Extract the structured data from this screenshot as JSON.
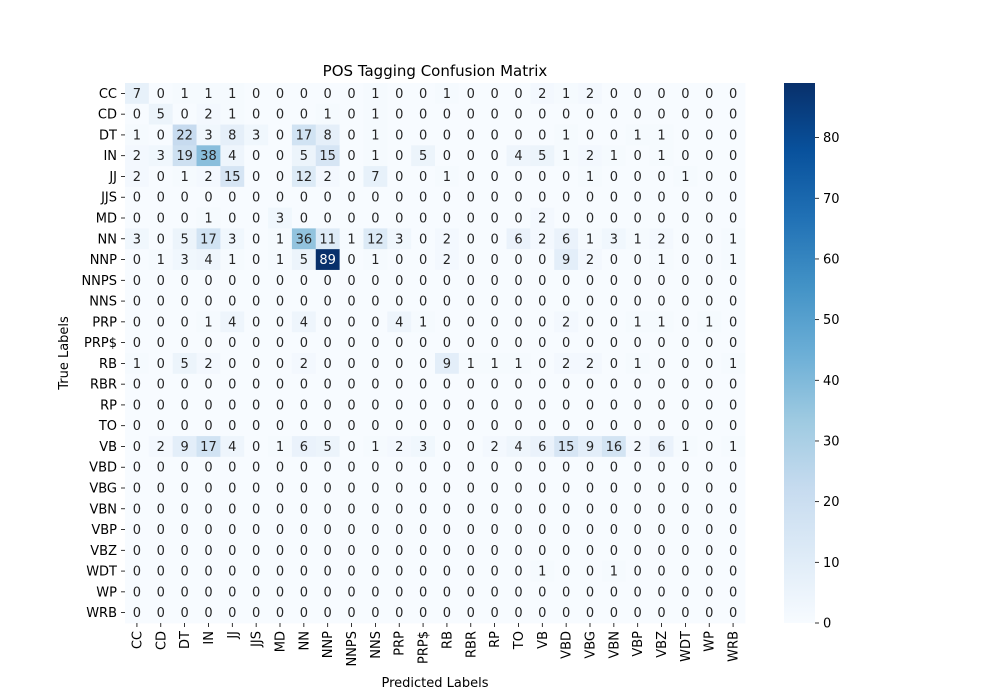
{
  "chart_data": {
    "type": "heatmap",
    "title": "POS Tagging Confusion Matrix",
    "xlabel": "Predicted Labels",
    "ylabel": "True Labels",
    "labels": [
      "CC",
      "CD",
      "DT",
      "IN",
      "JJ",
      "JJS",
      "MD",
      "NN",
      "NNP",
      "NNPS",
      "NNS",
      "PRP",
      "PRP$",
      "RB",
      "RBR",
      "RP",
      "TO",
      "VB",
      "VBD",
      "VBG",
      "VBN",
      "VBP",
      "VBZ",
      "WDT",
      "WP",
      "WRB"
    ],
    "matrix": [
      [
        7,
        0,
        1,
        1,
        1,
        0,
        0,
        0,
        0,
        0,
        1,
        0,
        0,
        1,
        0,
        0,
        0,
        2,
        1,
        2,
        0,
        0,
        0,
        0,
        0,
        0
      ],
      [
        0,
        5,
        0,
        2,
        1,
        0,
        0,
        0,
        1,
        0,
        1,
        0,
        0,
        0,
        0,
        0,
        0,
        0,
        0,
        0,
        0,
        0,
        0,
        0,
        0,
        0
      ],
      [
        1,
        0,
        22,
        3,
        8,
        3,
        0,
        17,
        8,
        0,
        1,
        0,
        0,
        0,
        0,
        0,
        0,
        0,
        1,
        0,
        0,
        1,
        1,
        0,
        0,
        0
      ],
      [
        2,
        3,
        19,
        38,
        4,
        0,
        0,
        5,
        15,
        0,
        1,
        0,
        5,
        0,
        0,
        0,
        4,
        5,
        1,
        2,
        1,
        0,
        1,
        0,
        0,
        0
      ],
      [
        2,
        0,
        1,
        2,
        15,
        0,
        0,
        12,
        2,
        0,
        7,
        0,
        0,
        1,
        0,
        0,
        0,
        0,
        0,
        1,
        0,
        0,
        0,
        1,
        0,
        0
      ],
      [
        0,
        0,
        0,
        0,
        0,
        0,
        0,
        0,
        0,
        0,
        0,
        0,
        0,
        0,
        0,
        0,
        0,
        0,
        0,
        0,
        0,
        0,
        0,
        0,
        0,
        0
      ],
      [
        0,
        0,
        0,
        1,
        0,
        0,
        3,
        0,
        0,
        0,
        0,
        0,
        0,
        0,
        0,
        0,
        0,
        2,
        0,
        0,
        0,
        0,
        0,
        0,
        0,
        0
      ],
      [
        3,
        0,
        5,
        17,
        3,
        0,
        1,
        36,
        11,
        1,
        12,
        3,
        0,
        2,
        0,
        0,
        6,
        2,
        6,
        1,
        3,
        1,
        2,
        0,
        0,
        1
      ],
      [
        0,
        1,
        3,
        4,
        1,
        0,
        1,
        5,
        89,
        0,
        1,
        0,
        0,
        2,
        0,
        0,
        0,
        0,
        9,
        2,
        0,
        0,
        1,
        0,
        0,
        1
      ],
      [
        0,
        0,
        0,
        0,
        0,
        0,
        0,
        0,
        0,
        0,
        0,
        0,
        0,
        0,
        0,
        0,
        0,
        0,
        0,
        0,
        0,
        0,
        0,
        0,
        0,
        0
      ],
      [
        0,
        0,
        0,
        0,
        0,
        0,
        0,
        0,
        0,
        0,
        0,
        0,
        0,
        0,
        0,
        0,
        0,
        0,
        0,
        0,
        0,
        0,
        0,
        0,
        0,
        0
      ],
      [
        0,
        0,
        0,
        1,
        4,
        0,
        0,
        4,
        0,
        0,
        0,
        4,
        1,
        0,
        0,
        0,
        0,
        0,
        2,
        0,
        0,
        1,
        1,
        0,
        1,
        0
      ],
      [
        0,
        0,
        0,
        0,
        0,
        0,
        0,
        0,
        0,
        0,
        0,
        0,
        0,
        0,
        0,
        0,
        0,
        0,
        0,
        0,
        0,
        0,
        0,
        0,
        0,
        0
      ],
      [
        1,
        0,
        5,
        2,
        0,
        0,
        0,
        2,
        0,
        0,
        0,
        0,
        0,
        9,
        1,
        1,
        1,
        0,
        2,
        2,
        0,
        1,
        0,
        0,
        0,
        1
      ],
      [
        0,
        0,
        0,
        0,
        0,
        0,
        0,
        0,
        0,
        0,
        0,
        0,
        0,
        0,
        0,
        0,
        0,
        0,
        0,
        0,
        0,
        0,
        0,
        0,
        0,
        0
      ],
      [
        0,
        0,
        0,
        0,
        0,
        0,
        0,
        0,
        0,
        0,
        0,
        0,
        0,
        0,
        0,
        0,
        0,
        0,
        0,
        0,
        0,
        0,
        0,
        0,
        0,
        0
      ],
      [
        0,
        0,
        0,
        0,
        0,
        0,
        0,
        0,
        0,
        0,
        0,
        0,
        0,
        0,
        0,
        0,
        0,
        0,
        0,
        0,
        0,
        0,
        0,
        0,
        0,
        0
      ],
      [
        0,
        2,
        9,
        17,
        4,
        0,
        1,
        6,
        5,
        0,
        1,
        2,
        3,
        0,
        0,
        2,
        4,
        6,
        15,
        9,
        16,
        2,
        6,
        1,
        0,
        1
      ],
      [
        0,
        0,
        0,
        0,
        0,
        0,
        0,
        0,
        0,
        0,
        0,
        0,
        0,
        0,
        0,
        0,
        0,
        0,
        0,
        0,
        0,
        0,
        0,
        0,
        0,
        0
      ],
      [
        0,
        0,
        0,
        0,
        0,
        0,
        0,
        0,
        0,
        0,
        0,
        0,
        0,
        0,
        0,
        0,
        0,
        0,
        0,
        0,
        0,
        0,
        0,
        0,
        0,
        0
      ],
      [
        0,
        0,
        0,
        0,
        0,
        0,
        0,
        0,
        0,
        0,
        0,
        0,
        0,
        0,
        0,
        0,
        0,
        0,
        0,
        0,
        0,
        0,
        0,
        0,
        0,
        0
      ],
      [
        0,
        0,
        0,
        0,
        0,
        0,
        0,
        0,
        0,
        0,
        0,
        0,
        0,
        0,
        0,
        0,
        0,
        0,
        0,
        0,
        0,
        0,
        0,
        0,
        0,
        0
      ],
      [
        0,
        0,
        0,
        0,
        0,
        0,
        0,
        0,
        0,
        0,
        0,
        0,
        0,
        0,
        0,
        0,
        0,
        0,
        0,
        0,
        0,
        0,
        0,
        0,
        0,
        0
      ],
      [
        0,
        0,
        0,
        0,
        0,
        0,
        0,
        0,
        0,
        0,
        0,
        0,
        0,
        0,
        0,
        0,
        0,
        1,
        0,
        0,
        1,
        0,
        0,
        0,
        0,
        0
      ],
      [
        0,
        0,
        0,
        0,
        0,
        0,
        0,
        0,
        0,
        0,
        0,
        0,
        0,
        0,
        0,
        0,
        0,
        0,
        0,
        0,
        0,
        0,
        0,
        0,
        0,
        0
      ],
      [
        0,
        0,
        0,
        0,
        0,
        0,
        0,
        0,
        0,
        0,
        0,
        0,
        0,
        0,
        0,
        0,
        0,
        0,
        0,
        0,
        0,
        0,
        0,
        0,
        0,
        0
      ]
    ],
    "colorbar": {
      "min": 0,
      "max": 89,
      "ticks": [
        0,
        10,
        20,
        30,
        40,
        50,
        60,
        70,
        80
      ],
      "colormap": "Blues",
      "colors": [
        "#f7fbff",
        "#deebf7",
        "#c6dbef",
        "#9ecae1",
        "#6baed6",
        "#4292c6",
        "#2171b5",
        "#08519c",
        "#08306b"
      ]
    }
  }
}
